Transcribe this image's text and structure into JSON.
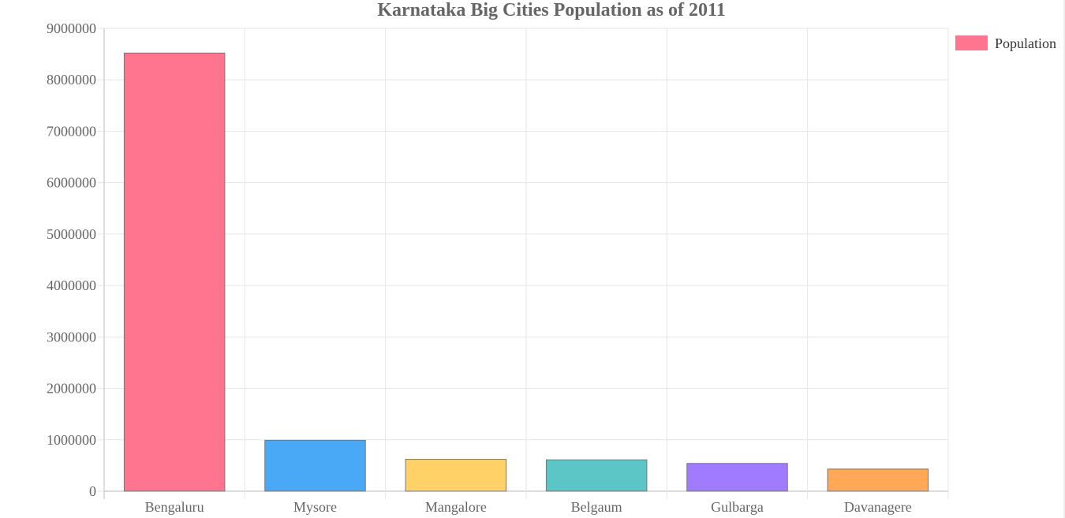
{
  "chart_data": {
    "type": "bar",
    "title": "Karnataka Big Cities Population as of 2011",
    "categories": [
      "Bengaluru",
      "Mysore",
      "Mangalore",
      "Belgaum",
      "Gulbarga",
      "Davanagere"
    ],
    "series": [
      {
        "name": "Population",
        "values": [
          8520000,
          990000,
          620000,
          610000,
          540000,
          430000
        ],
        "colors": [
          "#ff7590",
          "#4aa9f7",
          "#ffd166",
          "#5cc6c6",
          "#a07bff",
          "#ffa858"
        ]
      }
    ],
    "yticks": [
      "0",
      "1000000",
      "2000000",
      "3000000",
      "4000000",
      "5000000",
      "6000000",
      "7000000",
      "8000000",
      "9000000"
    ],
    "ylim": [
      0,
      9000000
    ],
    "xlabel": "",
    "ylabel": "",
    "grid": true,
    "legend": {
      "position": "right",
      "items": [
        {
          "label": "Population",
          "color": "#ff7590"
        }
      ]
    },
    "colors": {
      "bar_border": "#777777",
      "grid": "#e6e6e6",
      "axis": "#bbbbbb",
      "text": "#666666"
    }
  }
}
